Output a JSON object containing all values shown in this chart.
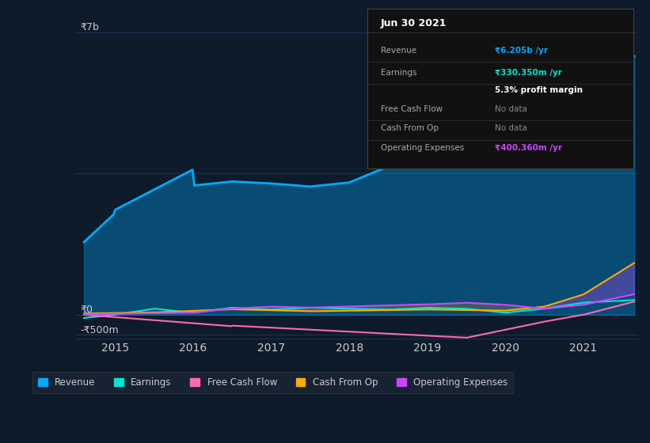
{
  "bg_color": "#0d1b2a",
  "plot_bg_color": "#0d1b2a",
  "grid_color": "#1e3050",
  "text_color": "#cccccc",
  "ylim": [
    -600,
    7500
  ],
  "xlim": [
    2014.5,
    2021.7
  ],
  "yticks": [
    -500,
    0,
    7000
  ],
  "ytick_labels": [
    "-₹500m",
    "₹0",
    "₹7b"
  ],
  "xtick_labels": [
    "2015",
    "2016",
    "2017",
    "2018",
    "2019",
    "2020",
    "2021"
  ],
  "xtick_positions": [
    2015,
    2016,
    2017,
    2018,
    2019,
    2020,
    2021
  ],
  "revenue_color": "#00aaff",
  "earnings_color": "#00e5cc",
  "fcf_color": "#ff69b4",
  "cashfromop_color": "#ffaa00",
  "opex_color": "#cc44ff",
  "legend_items": [
    {
      "label": "Revenue",
      "color": "#00aaff"
    },
    {
      "label": "Earnings",
      "color": "#00e5cc"
    },
    {
      "label": "Free Cash Flow",
      "color": "#ff69b4"
    },
    {
      "label": "Cash From Op",
      "color": "#ffaa00"
    },
    {
      "label": "Operating Expenses",
      "color": "#cc44ff"
    }
  ],
  "tooltip_bg": "#111111",
  "tooltip_border": "#333333",
  "tooltip_title": "Jun 30 2021",
  "revenue_label": "₹6.205b /yr",
  "earnings_label": "₹330.350m /yr",
  "margin_label": "5.3% profit margin",
  "fcf_label": "No data",
  "cashop_label": "No data",
  "opex_label": "₹400.360m /yr"
}
